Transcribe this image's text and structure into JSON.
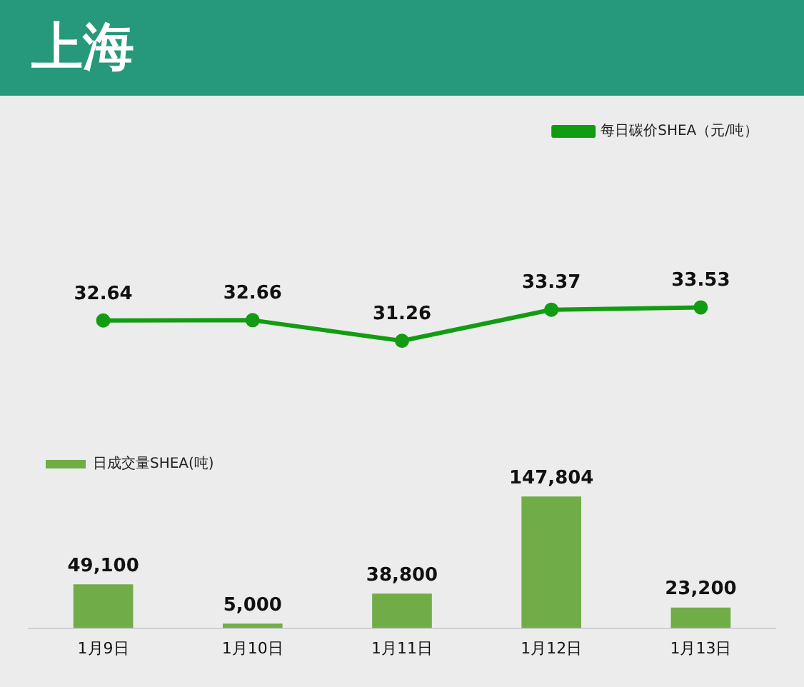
{
  "chart_data": [
    {
      "type": "line",
      "title": "上海",
      "categories": [
        null,
        null,
        null,
        null,
        null
      ],
      "series": [
        {
          "name": "每日碳价SHEA（元/吨）",
          "color": "#129c12",
          "values": [
            32.64,
            32.66,
            31.26,
            33.37,
            33.53
          ],
          "value_labels": [
            "32.64",
            "32.66",
            "31.26",
            "33.37",
            "33.53"
          ]
        }
      ],
      "tick_labels": false,
      "grid": false,
      "legend": "top right",
      "marker": "circle",
      "line_style": "solid"
    },
    {
      "type": "bar",
      "categories": [
        "1月9日",
        "1月10日",
        "1月11日",
        "1月12日",
        "1月13日"
      ],
      "series": [
        {
          "name": "日成交量SHEA(吨)",
          "color": "#70ad47",
          "values": [
            49100,
            5000,
            38800,
            147804,
            23200
          ],
          "value_labels": [
            "49,100",
            "5,000",
            "38,800",
            "147,804",
            "23,200"
          ]
        }
      ],
      "tick_labels": "x",
      "grid": false,
      "legend": "top left"
    }
  ]
}
